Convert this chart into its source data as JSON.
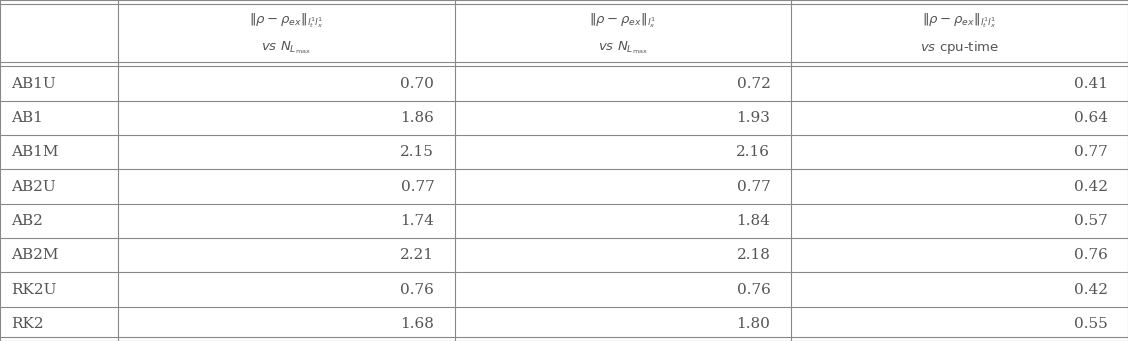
{
  "rows": [
    "AB1U",
    "AB1",
    "AB1M",
    "AB2U",
    "AB2",
    "AB2M",
    "RK2U",
    "RK2"
  ],
  "col1_values": [
    "0.70",
    "1.86",
    "2.15",
    "0.77",
    "1.74",
    "2.21",
    "0.76",
    "1.68"
  ],
  "col2_values": [
    "0.72",
    "1.93",
    "2.16",
    "0.77",
    "1.84",
    "2.18",
    "0.76",
    "1.80"
  ],
  "col3_values": [
    "0.41",
    "0.64",
    "0.77",
    "0.42",
    "0.57",
    "0.76",
    "0.42",
    "0.55"
  ],
  "background_color": "#ffffff",
  "line_color": "#888888",
  "text_color": "#555555",
  "figsize": [
    11.28,
    3.41
  ],
  "dpi": 100
}
